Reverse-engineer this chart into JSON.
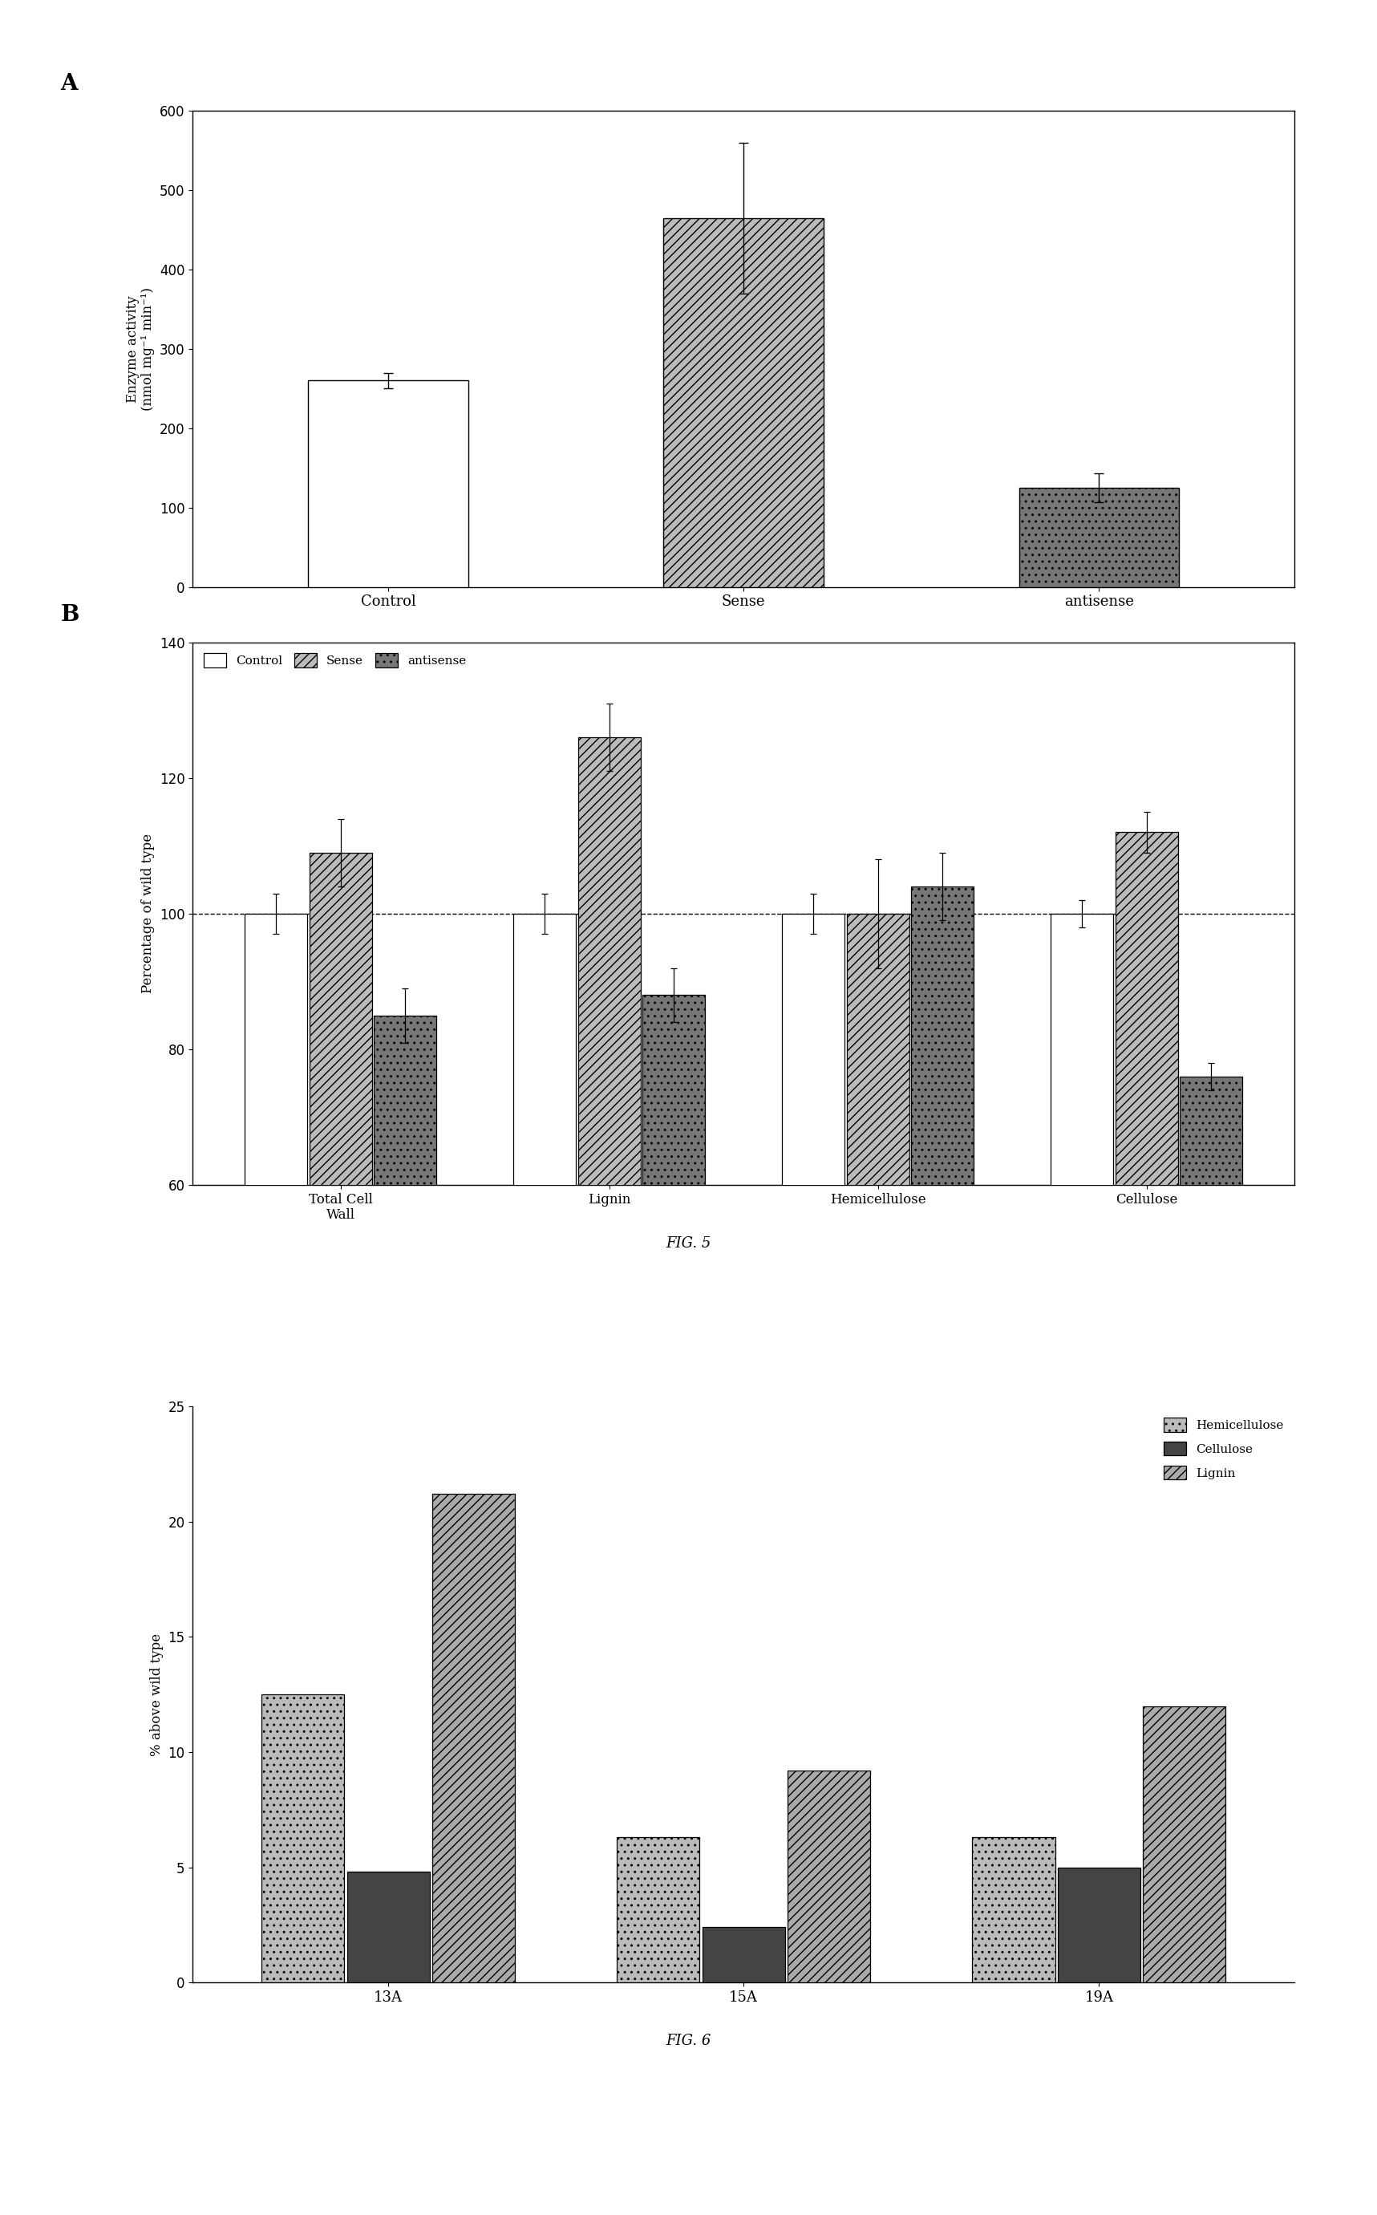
{
  "fig5A": {
    "categories": [
      "Control",
      "Sense",
      "antisense"
    ],
    "values": [
      260,
      465,
      125
    ],
    "errors": [
      10,
      95,
      18
    ],
    "ylabel": "Enzyme activity\n(nmol mg⁻¹ min⁻¹)",
    "ylim": [
      0,
      600
    ],
    "yticks": [
      0,
      100,
      200,
      300,
      400,
      500,
      600
    ]
  },
  "fig5B": {
    "categories": [
      "Total Cell\nWall",
      "Lignin",
      "Hemicellulose",
      "Cellulose"
    ],
    "groups": [
      "Control",
      "Sense",
      "antisense"
    ],
    "values": [
      [
        100,
        109,
        85
      ],
      [
        100,
        126,
        88
      ],
      [
        100,
        100,
        104
      ],
      [
        100,
        112,
        76
      ]
    ],
    "errors": [
      [
        3,
        5,
        4
      ],
      [
        3,
        5,
        4
      ],
      [
        3,
        8,
        5
      ],
      [
        2,
        3,
        2
      ]
    ],
    "ylabel": "Percentage of wild type",
    "ylim": [
      60,
      140
    ],
    "yticks": [
      60,
      80,
      100,
      120,
      140
    ],
    "dashed_line": 100
  },
  "fig6": {
    "categories": [
      "13A",
      "15A",
      "19A"
    ],
    "groups": [
      "Hemicellulose",
      "Cellulose",
      "Lignin"
    ],
    "values": [
      [
        12.5,
        4.8,
        21.2
      ],
      [
        6.3,
        2.4,
        9.2
      ],
      [
        6.3,
        5.0,
        12.0
      ]
    ],
    "ylabel": "% above wild type",
    "ylim": [
      0,
      25
    ],
    "yticks": [
      0,
      5,
      10,
      15,
      20,
      25
    ]
  },
  "fig5_label": "FIG. 5",
  "fig6_label": "FIG. 6",
  "panel_A_label": "A",
  "panel_B_label": "B"
}
